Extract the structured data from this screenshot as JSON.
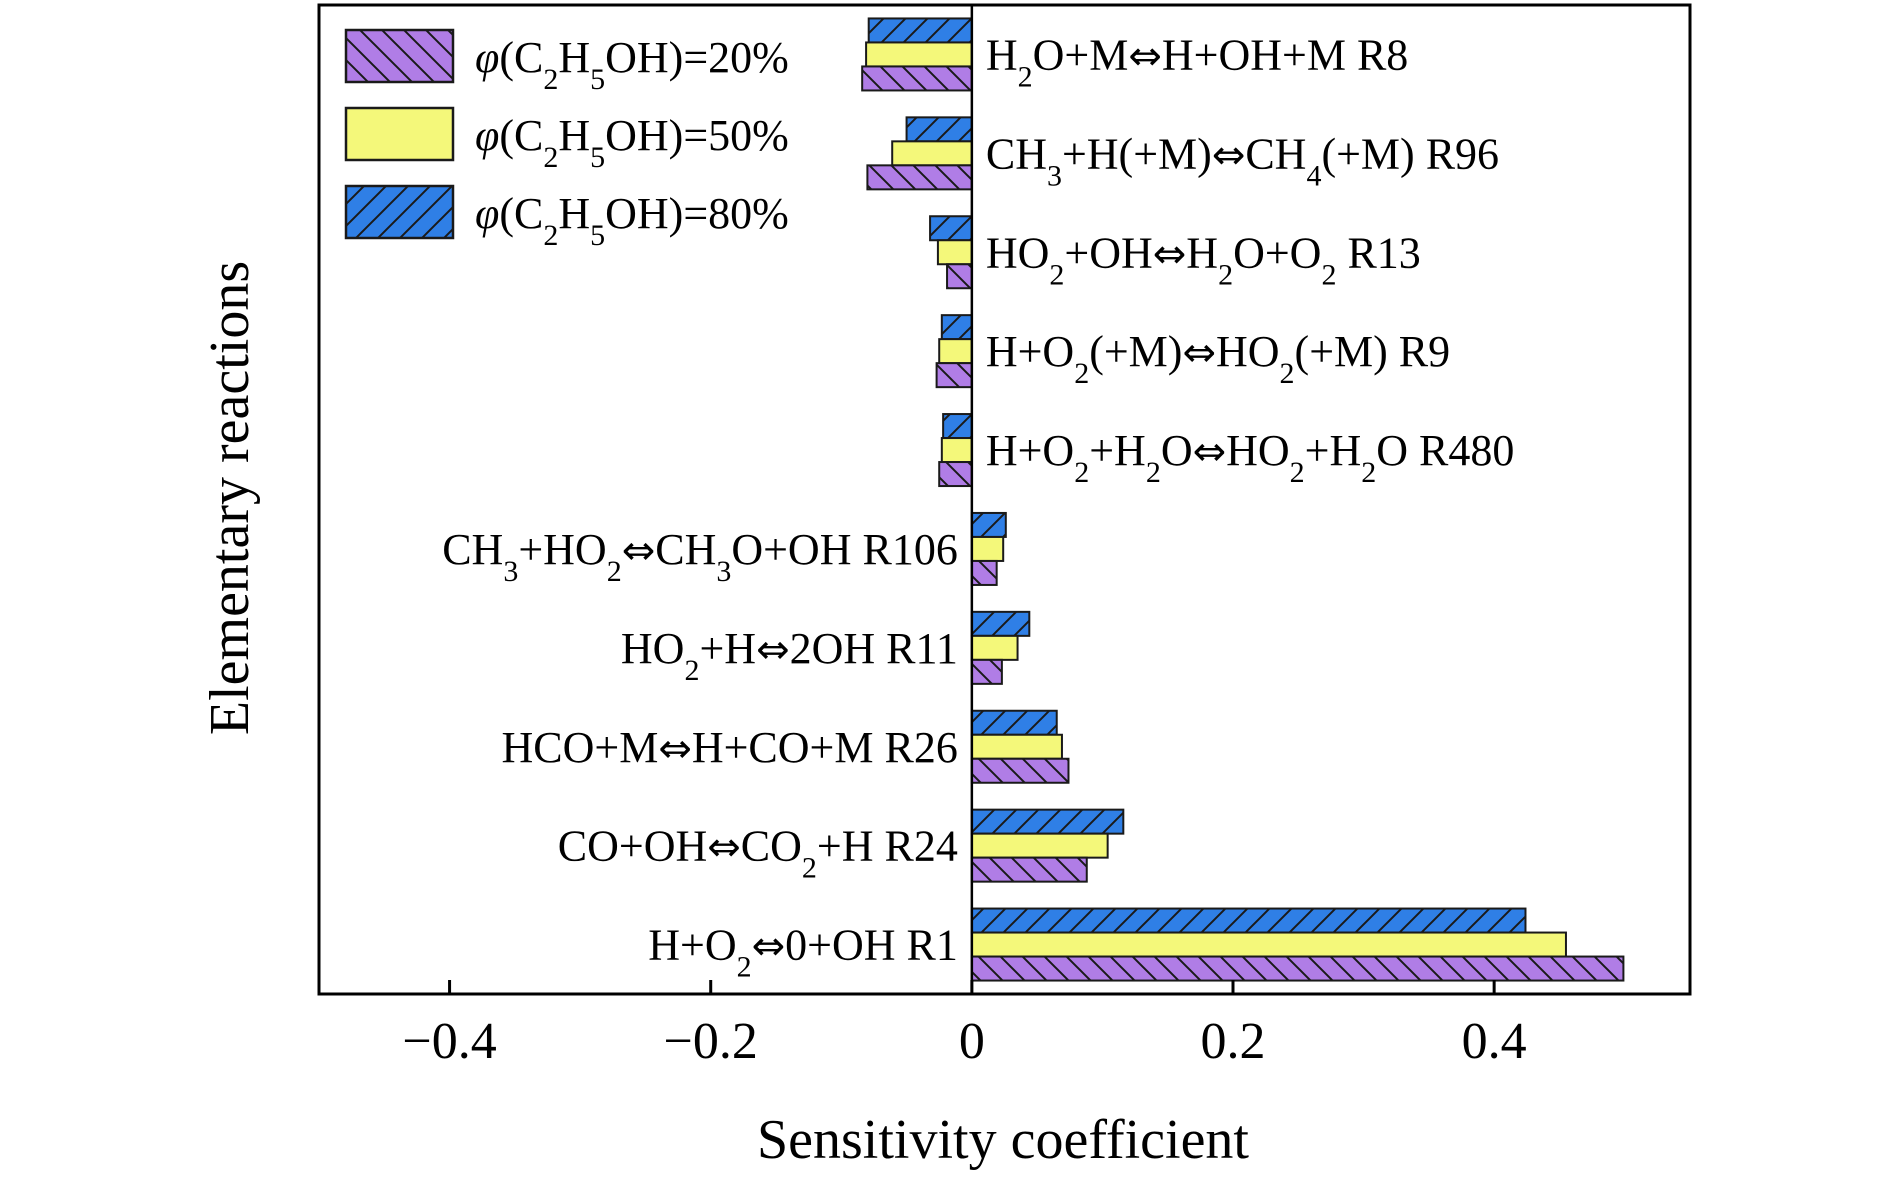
{
  "chart_data": {
    "type": "bar",
    "orientation": "horizontal",
    "xlabel": "Sensitivity coefficient",
    "ylabel": "Elementary reactions",
    "xlim": [
      -0.5,
      0.55
    ],
    "xticks": [
      -0.4,
      -0.2,
      0,
      0.2,
      0.4
    ],
    "xtick_labels": [
      "−0.4",
      "−0.2",
      "0",
      "0.2",
      "0.4"
    ],
    "grid": false,
    "legend_position": "top-left",
    "categories": [
      "H2O+M⇔H+OH+M R8",
      "CH3+H(+M)⇔CH4(+M) R96",
      "HO2+OH⇔H2O+O2 R13",
      "H+O2(+M)⇔HO2(+M) R9",
      "H+O2+H2O⇔HO2+H2O R480",
      "CH3+HO2⇔CH3O+OH R106",
      "HO2+H⇔2OH R11",
      "HCO+M⇔H+CO+M R26",
      "CO+OH⇔CO2+H R24",
      "H+O2⇔0+OH R1"
    ],
    "category_labels_rich": [
      [
        {
          "t": "H"
        },
        {
          "t": "2",
          "s": "sub"
        },
        {
          "t": "O+M"
        },
        {
          "t": "⇔",
          "s": "arrow"
        },
        {
          "t": "H+OH+M R8"
        }
      ],
      [
        {
          "t": "CH"
        },
        {
          "t": "3",
          "s": "sub"
        },
        {
          "t": "+H(+M)"
        },
        {
          "t": "⇔",
          "s": "arrow"
        },
        {
          "t": "CH"
        },
        {
          "t": "4",
          "s": "sub"
        },
        {
          "t": "(+M) R96"
        }
      ],
      [
        {
          "t": "HO"
        },
        {
          "t": "2",
          "s": "sub"
        },
        {
          "t": "+OH"
        },
        {
          "t": "⇔",
          "s": "arrow"
        },
        {
          "t": "H"
        },
        {
          "t": "2",
          "s": "sub"
        },
        {
          "t": "O+O"
        },
        {
          "t": "2",
          "s": "sub"
        },
        {
          "t": " R13"
        }
      ],
      [
        {
          "t": "H+O"
        },
        {
          "t": "2",
          "s": "sub"
        },
        {
          "t": "(+M)"
        },
        {
          "t": "⇔",
          "s": "arrow"
        },
        {
          "t": "HO"
        },
        {
          "t": "2",
          "s": "sub"
        },
        {
          "t": "(+M) R9"
        }
      ],
      [
        {
          "t": "H+O"
        },
        {
          "t": "2",
          "s": "sub"
        },
        {
          "t": "+H"
        },
        {
          "t": "2",
          "s": "sub"
        },
        {
          "t": "O"
        },
        {
          "t": "⇔",
          "s": "arrow"
        },
        {
          "t": "HO"
        },
        {
          "t": "2",
          "s": "sub"
        },
        {
          "t": "+H"
        },
        {
          "t": "2",
          "s": "sub"
        },
        {
          "t": "O R480"
        }
      ],
      [
        {
          "t": "CH"
        },
        {
          "t": "3",
          "s": "sub"
        },
        {
          "t": "+HO"
        },
        {
          "t": "2",
          "s": "sub"
        },
        {
          "t": "⇔",
          "s": "arrow"
        },
        {
          "t": "CH"
        },
        {
          "t": "3",
          "s": "sub"
        },
        {
          "t": "O+OH R106"
        }
      ],
      [
        {
          "t": "HO"
        },
        {
          "t": "2",
          "s": "sub"
        },
        {
          "t": "+H"
        },
        {
          "t": "⇔",
          "s": "arrow"
        },
        {
          "t": "2OH R11"
        }
      ],
      [
        {
          "t": "HCO+M"
        },
        {
          "t": "⇔",
          "s": "arrow"
        },
        {
          "t": "H+CO+M R26"
        }
      ],
      [
        {
          "t": "CO+OH"
        },
        {
          "t": "⇔",
          "s": "arrow"
        },
        {
          "t": "CO"
        },
        {
          "t": "2",
          "s": "sub"
        },
        {
          "t": "+H R24"
        }
      ],
      [
        {
          "t": "H+O"
        },
        {
          "t": "2",
          "s": "sub"
        },
        {
          "t": "⇔",
          "s": "arrow"
        },
        {
          "t": "0+OH R1"
        }
      ]
    ],
    "series": [
      {
        "name": "φ(C2H5OH)=80%",
        "name_rich": [
          {
            "t": "φ",
            "s": "ital"
          },
          {
            "t": "(C"
          },
          {
            "t": "2",
            "s": "sub"
          },
          {
            "t": "H"
          },
          {
            "t": "5",
            "s": "sub"
          },
          {
            "t": "OH)=80%"
          }
        ],
        "color": "#2f7fe6",
        "pattern": "forward-hatch",
        "values": [
          -0.079,
          -0.05,
          -0.032,
          -0.023,
          -0.022,
          0.026,
          0.044,
          0.065,
          0.116,
          0.424
        ]
      },
      {
        "name": "φ(C2H5OH)=50%",
        "name_rich": [
          {
            "t": "φ",
            "s": "ital"
          },
          {
            "t": "(C"
          },
          {
            "t": "2",
            "s": "sub"
          },
          {
            "t": "H"
          },
          {
            "t": "5",
            "s": "sub"
          },
          {
            "t": "OH)=50%"
          }
        ],
        "color": "#f4f87a",
        "pattern": "solid",
        "values": [
          -0.081,
          -0.061,
          -0.026,
          -0.025,
          -0.023,
          0.024,
          0.035,
          0.069,
          0.104,
          0.455
        ]
      },
      {
        "name": "φ(C2H5OH)=20%",
        "name_rich": [
          {
            "t": "φ",
            "s": "ital"
          },
          {
            "t": "(C"
          },
          {
            "t": "2",
            "s": "sub"
          },
          {
            "t": "H"
          },
          {
            "t": "5",
            "s": "sub"
          },
          {
            "t": "OH)=20%"
          }
        ],
        "color": "#b07de6",
        "pattern": "back-hatch",
        "values": [
          -0.084,
          -0.08,
          -0.019,
          -0.027,
          -0.025,
          0.019,
          0.023,
          0.074,
          0.088,
          0.499
        ]
      }
    ],
    "legend_order": [
      2,
      1,
      0
    ],
    "label_side_by_category": [
      "right",
      "right",
      "right",
      "right",
      "right",
      "left",
      "left",
      "left",
      "left",
      "left"
    ]
  }
}
